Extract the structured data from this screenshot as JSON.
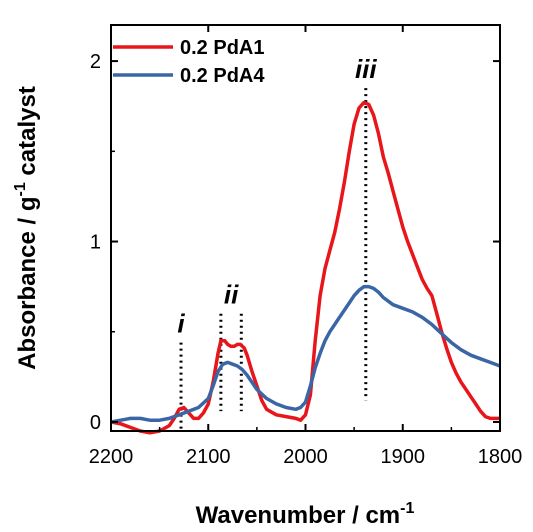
{
  "chart_data": {
    "type": "line",
    "xlabel": "Wavenumber / cm",
    "xlabel_sup": "-1",
    "ylabel_main": "Absorbance / g",
    "ylabel_sup": "-1",
    "ylabel_end": " catalyst",
    "xlim": [
      2200,
      1800
    ],
    "ylim": [
      -0.05,
      2.2
    ],
    "x_reversed": true,
    "grid": false,
    "legend_position": "top-left",
    "x_ticks": [
      2200,
      2100,
      2000,
      1900,
      1800
    ],
    "y_ticks": [
      0,
      1,
      2
    ],
    "x_tick_labels": [
      "2200",
      "2100",
      "2000",
      "1900",
      "1800"
    ],
    "y_tick_labels": [
      "0",
      "1",
      "2"
    ],
    "series": [
      {
        "name": "0.2 PdA1",
        "color": "#e8151b",
        "x": [
          2200,
          2190,
          2180,
          2170,
          2160,
          2150,
          2140,
          2135,
          2130,
          2125,
          2120,
          2115,
          2110,
          2105,
          2100,
          2095,
          2090,
          2087,
          2083,
          2080,
          2077,
          2073,
          2070,
          2067,
          2063,
          2060,
          2055,
          2050,
          2045,
          2040,
          2030,
          2020,
          2010,
          2005,
          2000,
          1995,
          1990,
          1985,
          1980,
          1975,
          1970,
          1965,
          1960,
          1955,
          1950,
          1945,
          1940,
          1935,
          1930,
          1925,
          1920,
          1915,
          1910,
          1905,
          1900,
          1895,
          1890,
          1885,
          1880,
          1875,
          1870,
          1865,
          1860,
          1855,
          1850,
          1845,
          1840,
          1835,
          1830,
          1825,
          1820,
          1815,
          1810,
          1805,
          1800
        ],
        "y": [
          0.0,
          -0.01,
          -0.03,
          -0.05,
          -0.06,
          -0.05,
          -0.02,
          0.02,
          0.07,
          0.08,
          0.05,
          0.02,
          0.02,
          0.05,
          0.1,
          0.22,
          0.38,
          0.45,
          0.45,
          0.43,
          0.42,
          0.42,
          0.43,
          0.43,
          0.41,
          0.37,
          0.28,
          0.2,
          0.12,
          0.07,
          0.04,
          0.03,
          0.02,
          0.01,
          0.04,
          0.15,
          0.45,
          0.7,
          0.85,
          0.95,
          1.05,
          1.18,
          1.33,
          1.5,
          1.65,
          1.74,
          1.77,
          1.76,
          1.7,
          1.6,
          1.47,
          1.38,
          1.28,
          1.18,
          1.08,
          1.0,
          0.93,
          0.86,
          0.79,
          0.74,
          0.7,
          0.6,
          0.5,
          0.41,
          0.33,
          0.27,
          0.22,
          0.18,
          0.14,
          0.1,
          0.06,
          0.03,
          0.02,
          0.02,
          0.02
        ]
      },
      {
        "name": "0.2 PdA4",
        "color": "#3a66a6",
        "x": [
          2200,
          2190,
          2180,
          2170,
          2160,
          2150,
          2140,
          2130,
          2120,
          2110,
          2100,
          2095,
          2090,
          2085,
          2080,
          2075,
          2070,
          2065,
          2060,
          2055,
          2050,
          2040,
          2030,
          2020,
          2010,
          2005,
          2000,
          1995,
          1990,
          1985,
          1980,
          1975,
          1970,
          1965,
          1960,
          1955,
          1950,
          1945,
          1940,
          1935,
          1930,
          1925,
          1920,
          1910,
          1900,
          1890,
          1880,
          1870,
          1860,
          1850,
          1840,
          1830,
          1820,
          1810,
          1800
        ],
        "y": [
          0.0,
          0.01,
          0.02,
          0.02,
          0.01,
          0.01,
          0.02,
          0.04,
          0.06,
          0.08,
          0.13,
          0.2,
          0.28,
          0.32,
          0.33,
          0.32,
          0.31,
          0.29,
          0.26,
          0.22,
          0.18,
          0.13,
          0.1,
          0.08,
          0.07,
          0.08,
          0.11,
          0.2,
          0.3,
          0.38,
          0.45,
          0.5,
          0.54,
          0.58,
          0.62,
          0.66,
          0.7,
          0.73,
          0.75,
          0.75,
          0.74,
          0.72,
          0.69,
          0.65,
          0.63,
          0.61,
          0.58,
          0.54,
          0.49,
          0.44,
          0.4,
          0.37,
          0.35,
          0.33,
          0.31
        ]
      }
    ],
    "annotations": [
      {
        "label": "i",
        "x_lines": [
          2128
        ],
        "y_top": 0.44,
        "y_bottom": -0.04
      },
      {
        "label": "ii",
        "x_lines": [
          2087,
          2066
        ],
        "y_top": 0.6,
        "y_bottom": 0.06
      },
      {
        "label": "iii",
        "x_lines": [
          1938
        ],
        "y_top": 1.85,
        "y_bottom": 0.12
      }
    ]
  }
}
